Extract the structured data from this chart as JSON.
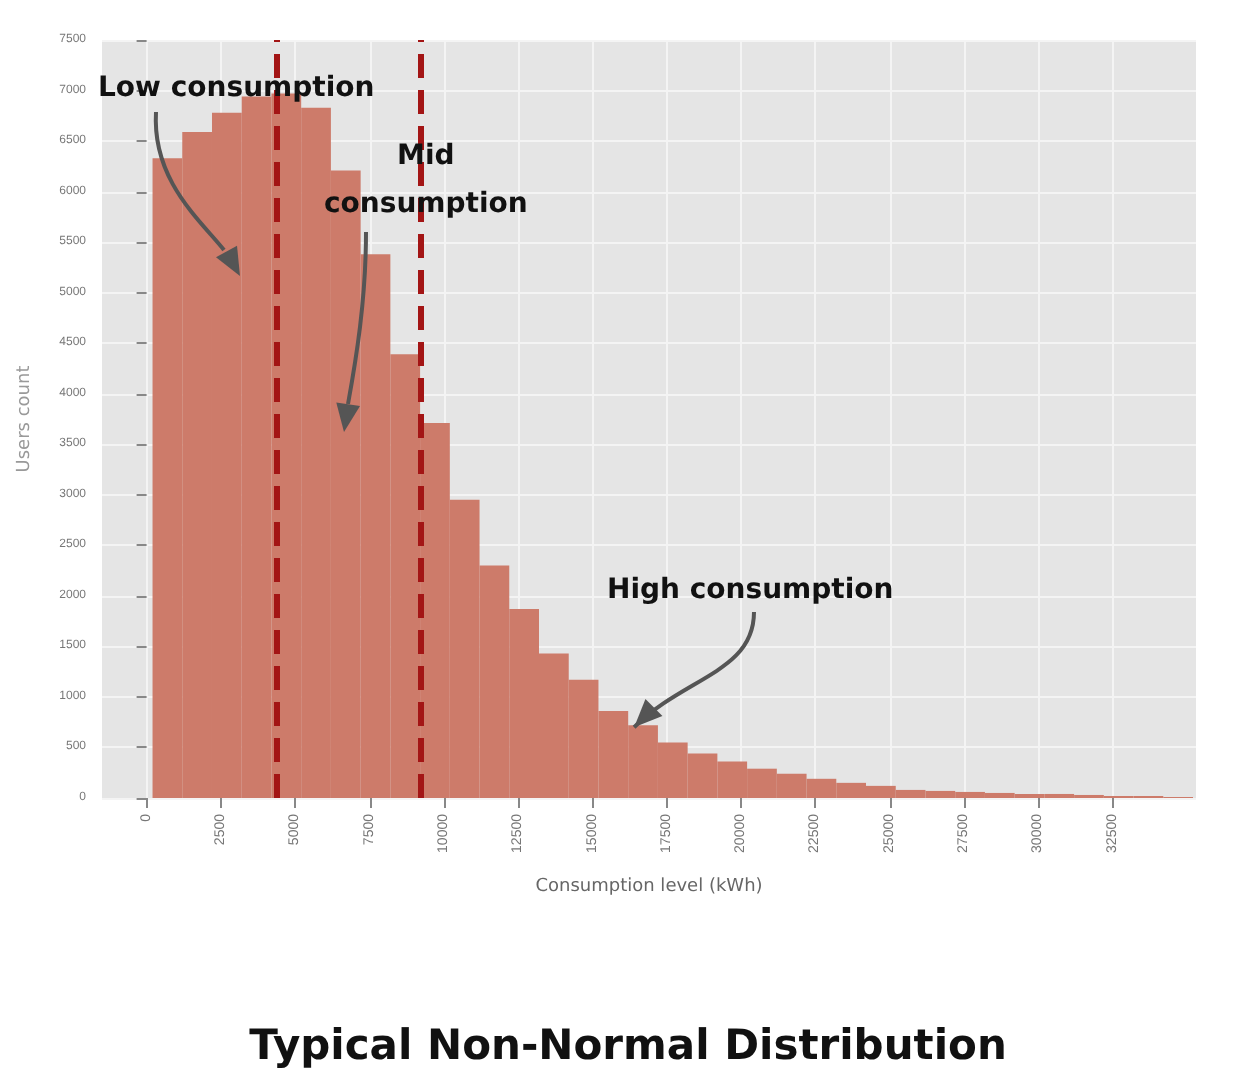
{
  "chart_data": {
    "type": "histogram",
    "title": "Typical Non-Normal Distribution",
    "xlabel": "Consumption level (kWh)",
    "ylabel": "Users count",
    "bins": [
      200,
      1200,
      2200,
      3200,
      4200,
      5200,
      6200,
      7200,
      8200,
      9200,
      10200,
      11200,
      12200,
      13200,
      14200,
      15200,
      16200,
      17200,
      18200,
      19200,
      20200,
      21200,
      22200,
      23200,
      24200,
      25200,
      26200,
      27200,
      28200,
      29200,
      30200,
      31200,
      32200,
      33200,
      34200,
      35200
    ],
    "values": [
      6330,
      6590,
      6780,
      6940,
      6970,
      6830,
      6210,
      5380,
      4390,
      3710,
      2950,
      2300,
      1870,
      1430,
      1170,
      860,
      720,
      550,
      440,
      360,
      290,
      240,
      190,
      150,
      120,
      80,
      70,
      60,
      50,
      40,
      40,
      30,
      20,
      20,
      10
    ],
    "color": "#cd7b6a",
    "xlim": [
      -1500,
      35300
    ],
    "xticks": [
      0,
      2500,
      5000,
      7500,
      10000,
      12500,
      15000,
      17500,
      20000,
      22500,
      25000,
      27500,
      30000,
      32500
    ],
    "ylim": [
      0,
      7500
    ],
    "yticks": [
      0,
      500,
      1000,
      1500,
      2000,
      2500,
      3000,
      3500,
      4000,
      4500,
      5000,
      5500,
      6000,
      6500,
      7000,
      7500
    ],
    "grid": true,
    "ref_lines": [
      {
        "axis": "x",
        "value": 4400,
        "color": "#a31515",
        "line_style": "dashed"
      },
      {
        "axis": "x",
        "value": 9200,
        "color": "#a31515",
        "line_style": "dashed"
      }
    ],
    "annotations": [
      "Low consumption",
      "Mid\nconsumption",
      {
        "text": "High consumption",
        "x": 16400,
        "y": 700
      }
    ]
  }
}
